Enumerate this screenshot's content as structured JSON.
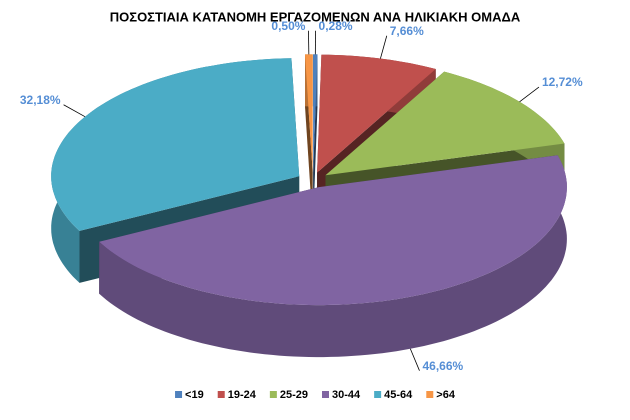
{
  "chart_data": {
    "type": "pie3d",
    "title": "ΠΟΣΟΣΤΙΑΙΑ ΚΑΤΑΝΟΜΗ ΕΡΓΑΖΟΜΕΝΩΝ ΑΝΑ ΗΛΙΚΙΑΚΗ ΟΜΑΔΑ",
    "categories": [
      "<19",
      "19-24",
      "25-29",
      "30-44",
      "45-64",
      ">64"
    ],
    "values": [
      0.28,
      7.66,
      12.72,
      46.66,
      32.18,
      0.5
    ],
    "value_labels": [
      "0,28%",
      "7,66%",
      "12,72%",
      "46,66%",
      "32,18%",
      "0,50%"
    ],
    "colors": [
      "#4f81bd",
      "#c0504d",
      "#9bbb59",
      "#8064a2",
      "#4bacc6",
      "#f79646"
    ],
    "legend": "bottom"
  }
}
